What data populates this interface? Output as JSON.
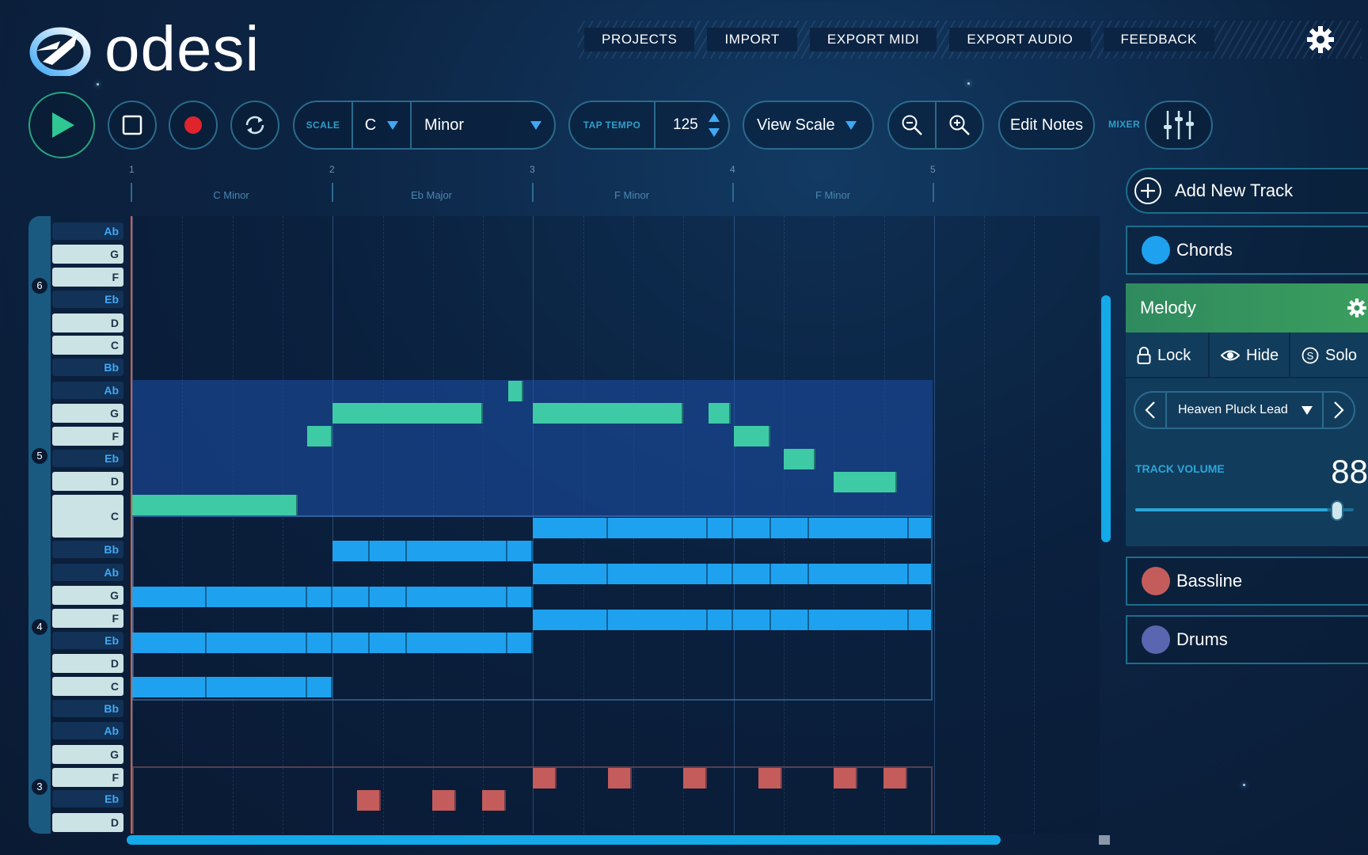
{
  "app": {
    "name": "odesi"
  },
  "nav": {
    "items": [
      "PROJECTS",
      "IMPORT",
      "EXPORT MIDI",
      "EXPORT AUDIO",
      "FEEDBACK"
    ]
  },
  "toolbar": {
    "scale_label": "SCALE",
    "key": "C",
    "mode": "Minor",
    "tap_tempo_label": "TAP TEMPO",
    "tempo": "125",
    "view_scale": "View Scale",
    "edit_notes": "Edit Notes",
    "mixer_label": "MIXER"
  },
  "timeline": {
    "bars": [
      "1",
      "2",
      "3",
      "4",
      "5"
    ],
    "regions": [
      "C Minor",
      "Eb Major",
      "F Minor",
      "F Minor"
    ]
  },
  "piano": {
    "keys": [
      "Ab",
      "G",
      "F",
      "Eb",
      "D",
      "C",
      "Bb",
      "Ab",
      "G",
      "F",
      "Eb",
      "D",
      "C",
      "Bb",
      "Ab",
      "G",
      "F",
      "Eb",
      "D",
      "C",
      "Bb",
      "Ab",
      "G",
      "F",
      "Eb",
      "D"
    ],
    "octaves": [
      "6",
      "5",
      "4",
      "3"
    ]
  },
  "tracks": {
    "add_label": "Add New Track",
    "chords": {
      "name": "Chords",
      "color": "#1ea2ef"
    },
    "melody": {
      "name": "Melody",
      "color": "#3fcaa6",
      "lock": "Lock",
      "hide": "Hide",
      "solo": "Solo",
      "instrument": "Heaven Pluck Lead",
      "volume_label": "TRACK VOLUME",
      "volume": "88",
      "volume_level": 0.88
    },
    "bassline": {
      "name": "Bassline",
      "color": "#c45c5c"
    },
    "drums": {
      "name": "Drums",
      "color": "#5a66b0"
    }
  }
}
